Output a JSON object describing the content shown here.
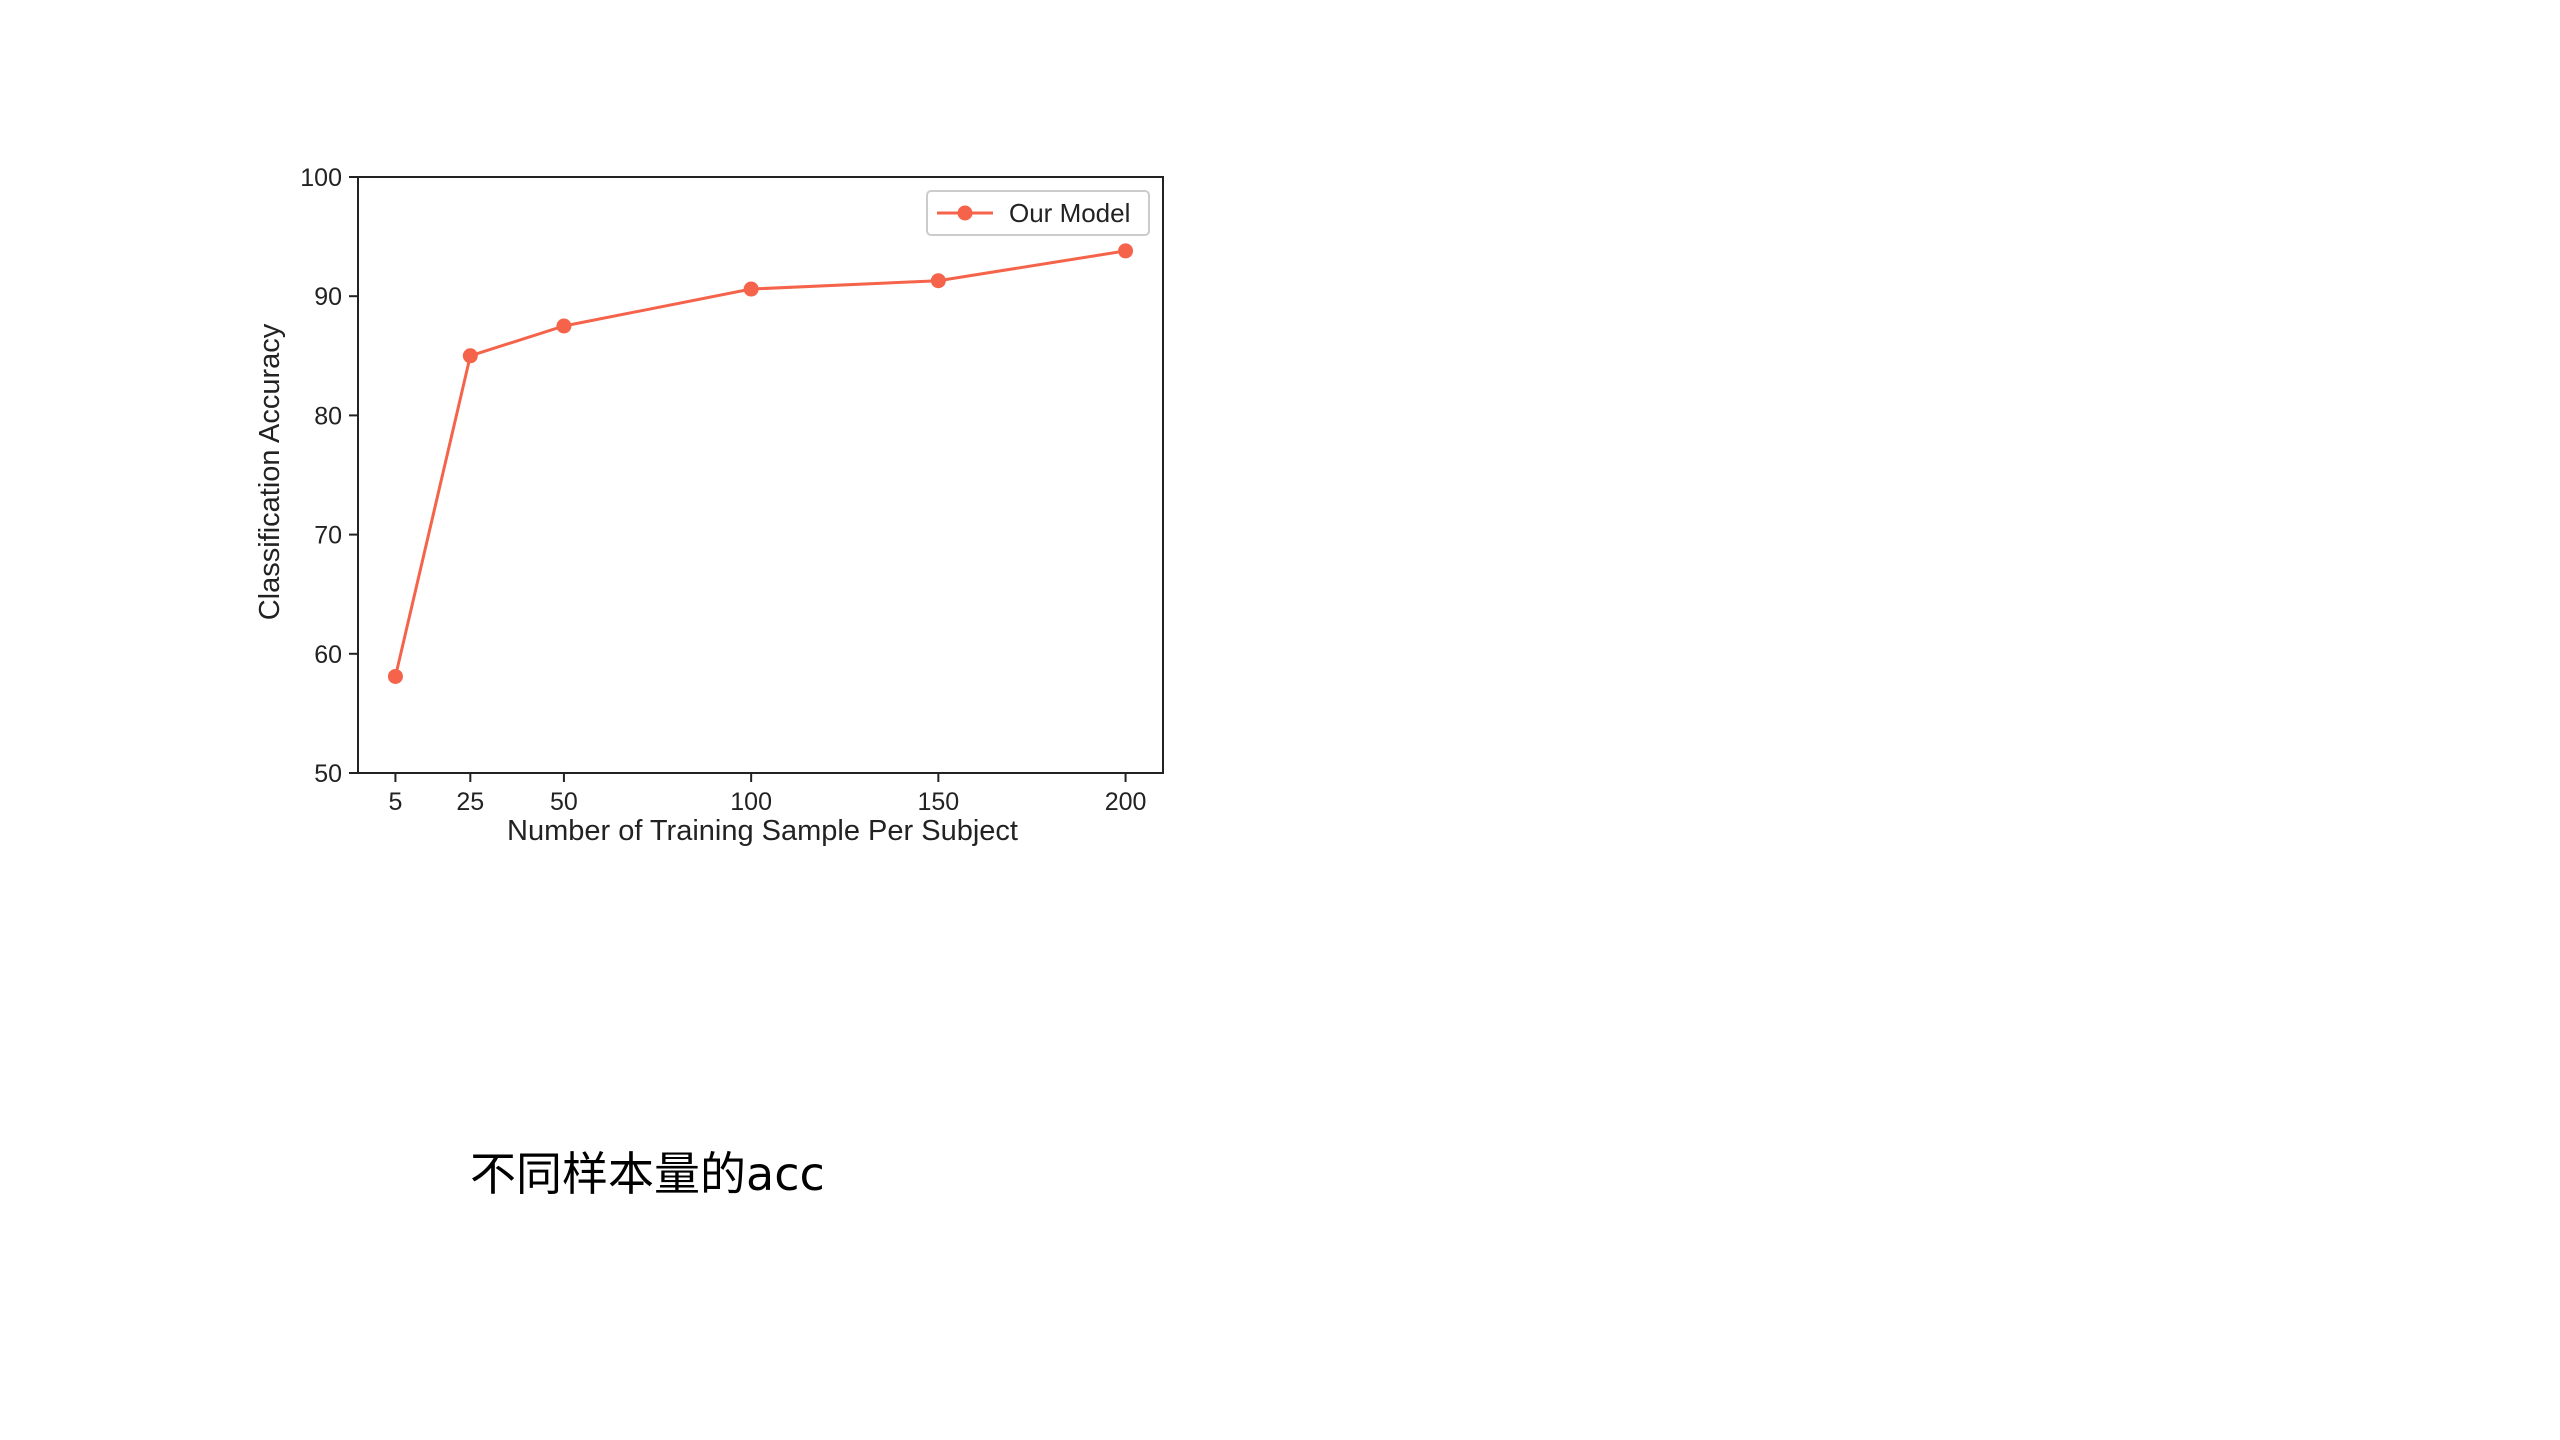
{
  "chart_data": {
    "type": "line",
    "x": [
      5,
      25,
      50,
      100,
      150,
      200
    ],
    "series": [
      {
        "name": "Our Model",
        "values": [
          58.1,
          85.0,
          87.5,
          90.6,
          91.3,
          93.8
        ],
        "color": "#f4634a"
      }
    ],
    "xticks": [
      5,
      25,
      50,
      100,
      150,
      200
    ],
    "yticks": [
      50,
      60,
      70,
      80,
      90,
      100
    ],
    "xlabel": "Number of Training Sample Per Subject",
    "ylabel": "Classification Accuracy",
    "xlim": [
      -5,
      210
    ],
    "ylim": [
      50,
      100
    ],
    "legend": "top-right",
    "grid": false
  },
  "caption": "不同样本量的acc"
}
